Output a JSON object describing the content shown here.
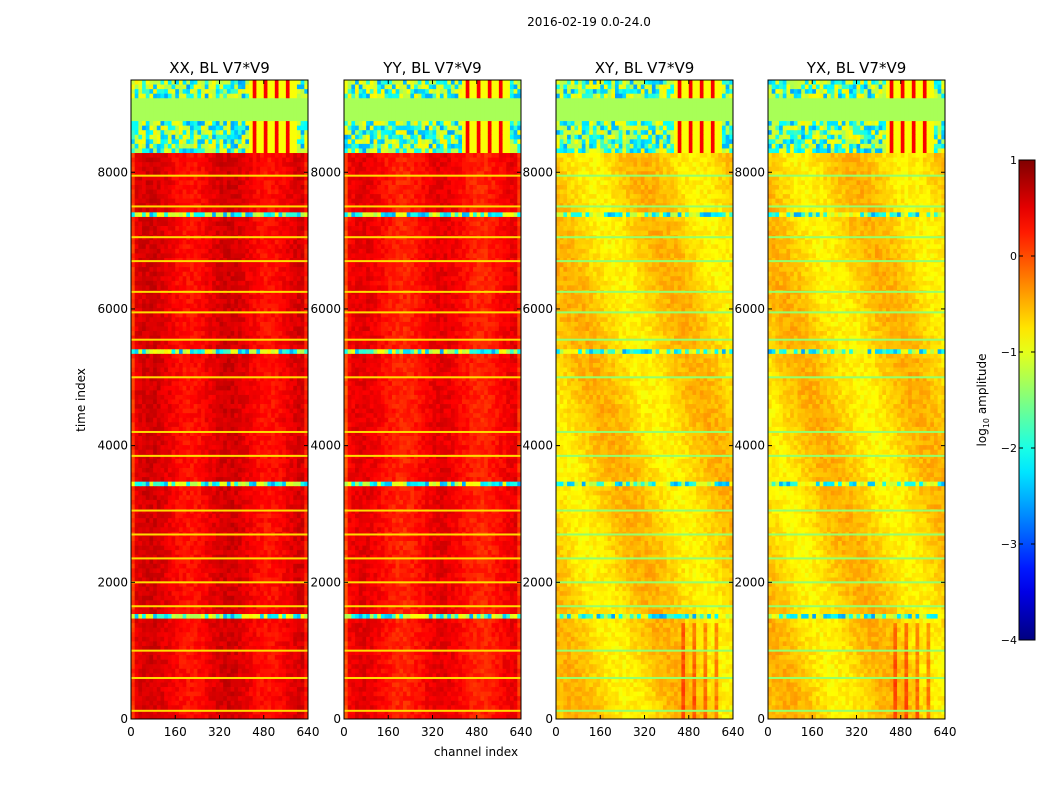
{
  "chart_data": {
    "type": "heatmap",
    "suptitle": "2016-02-19 0.0-24.0",
    "xlabel": "channel index",
    "ylabel": "time index",
    "xlim": [
      0,
      640
    ],
    "ylim": [
      0,
      9350
    ],
    "xticks": [
      0,
      160,
      320,
      480,
      640
    ],
    "yticks": [
      0,
      2000,
      4000,
      6000,
      8000
    ],
    "panels": [
      {
        "title": "XX, BL V7*V9",
        "base_level": 0.45
      },
      {
        "title": "YY, BL V7*V9",
        "base_level": 0.35
      },
      {
        "title": "XY, BL V7*V9",
        "base_level": -0.65
      },
      {
        "title": "YX, BL V7*V9",
        "base_level": -0.65
      }
    ],
    "flagged_time_ranges": [
      [
        1480,
        1560
      ],
      [
        3430,
        3500
      ],
      [
        5350,
        5420
      ],
      [
        7330,
        7390
      ],
      [
        8300,
        9350
      ]
    ],
    "colorbar": {
      "label": "log10 amplitude",
      "label_main": "log",
      "label_sub": "10",
      "label_rest": " amplitude",
      "range": [
        -4,
        1
      ],
      "ticks": [
        1,
        0,
        -1,
        -2,
        -3,
        -4
      ],
      "tick_labels": [
        "1",
        "0",
        "−1",
        "−2",
        "−3",
        "−4"
      ],
      "colormap": "jet"
    }
  }
}
